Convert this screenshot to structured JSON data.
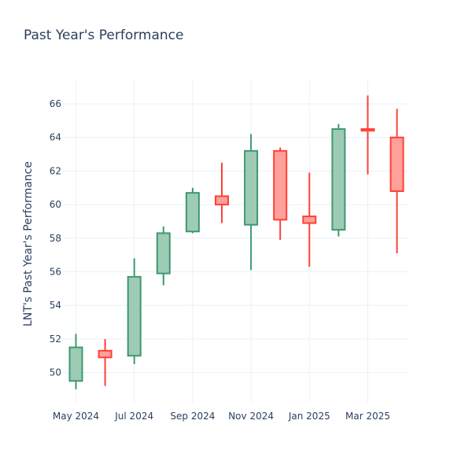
{
  "chart_data": {
    "type": "candlestick",
    "title": "Past Year's Performance",
    "xlabel": "",
    "ylabel": "LNT's Past Year's Performance",
    "ylim": [
      48.2,
      67.5
    ],
    "yticks": [
      50,
      52,
      54,
      56,
      58,
      60,
      62,
      64,
      66
    ],
    "x_ticks": [
      {
        "label": "May 2024",
        "index": 0
      },
      {
        "label": "Jul 2024",
        "index": 2
      },
      {
        "label": "Sep 2024",
        "index": 4
      },
      {
        "label": "Nov 2024",
        "index": 6
      },
      {
        "label": "Jan 2025",
        "index": 8
      },
      {
        "label": "Mar 2025",
        "index": 10
      }
    ],
    "colors": {
      "up": "#3d9970",
      "up_fill": "#9ecbb5",
      "down": "#ff4136",
      "down_fill": "#ffa09b"
    },
    "candles": [
      {
        "period": "2024-05",
        "open": 49.5,
        "high": 52.3,
        "low": 49.0,
        "close": 51.5
      },
      {
        "period": "2024-06",
        "open": 51.3,
        "high": 52.0,
        "low": 49.2,
        "close": 50.9
      },
      {
        "period": "2024-07",
        "open": 51.0,
        "high": 56.8,
        "low": 50.5,
        "close": 55.7
      },
      {
        "period": "2024-08",
        "open": 55.9,
        "high": 58.7,
        "low": 55.2,
        "close": 58.3
      },
      {
        "period": "2024-09",
        "open": 58.4,
        "high": 61.0,
        "low": 58.3,
        "close": 60.7
      },
      {
        "period": "2024-10",
        "open": 60.5,
        "high": 62.5,
        "low": 58.9,
        "close": 60.0
      },
      {
        "period": "2024-11",
        "open": 58.8,
        "high": 64.2,
        "low": 56.1,
        "close": 63.2
      },
      {
        "period": "2024-12",
        "open": 63.2,
        "high": 63.4,
        "low": 57.9,
        "close": 59.1
      },
      {
        "period": "2025-01",
        "open": 59.3,
        "high": 61.9,
        "low": 56.3,
        "close": 58.9
      },
      {
        "period": "2025-02",
        "open": 58.5,
        "high": 64.8,
        "low": 58.1,
        "close": 64.5
      },
      {
        "period": "2025-03",
        "open": 64.5,
        "high": 66.5,
        "low": 61.8,
        "close": 64.4
      },
      {
        "period": "2025-04",
        "open": 64.0,
        "high": 65.7,
        "low": 57.1,
        "close": 60.8
      }
    ]
  }
}
